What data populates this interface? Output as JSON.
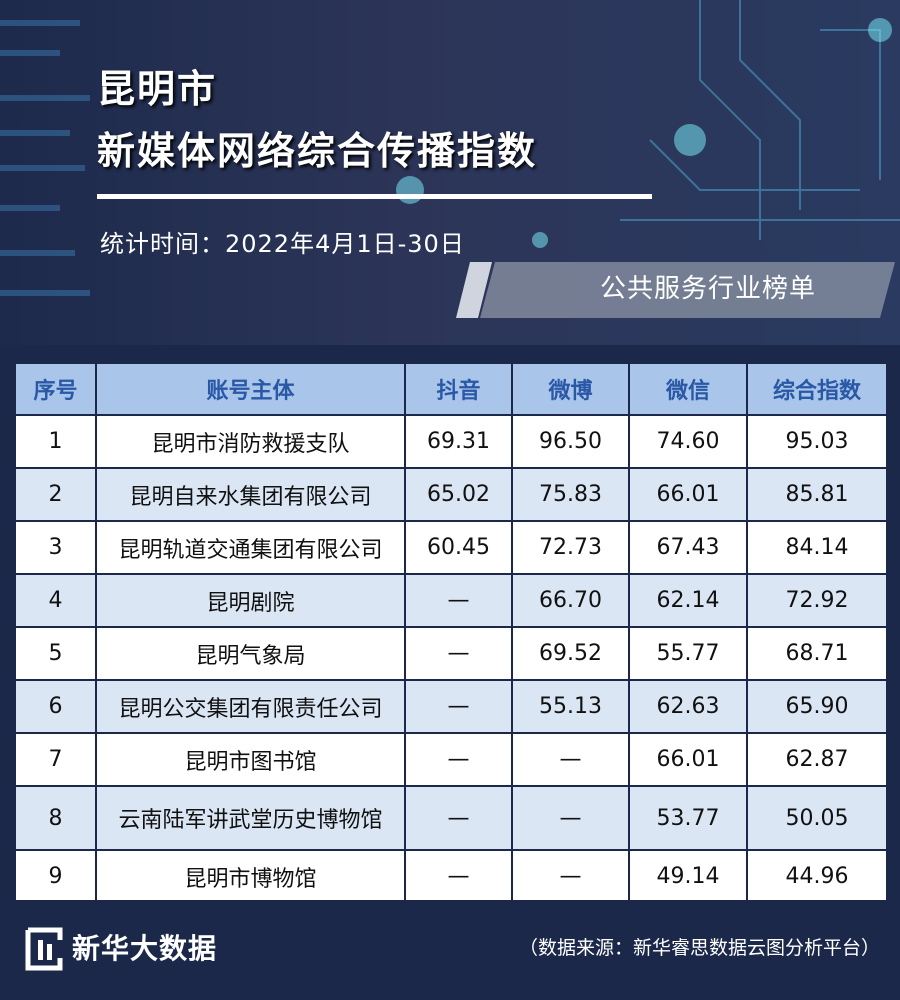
{
  "header": {
    "title_line1": "昆明市",
    "title_line2": "新媒体网络综合传播指数",
    "date": "统计时间：2022年4月1日-30日",
    "category": "公共服务行业榜单"
  },
  "table": {
    "columns": [
      "序号",
      "账号主体",
      "抖音",
      "微博",
      "微信",
      "综合指数"
    ],
    "rows": [
      [
        "1",
        "昆明市消防救援支队",
        "69.31",
        "96.50",
        "74.60",
        "95.03"
      ],
      [
        "2",
        "昆明自来水集团有限公司",
        "65.02",
        "75.83",
        "66.01",
        "85.81"
      ],
      [
        "3",
        "昆明轨道交通集团有限公司",
        "60.45",
        "72.73",
        "67.43",
        "84.14"
      ],
      [
        "4",
        "昆明剧院",
        "—",
        "66.70",
        "62.14",
        "72.92"
      ],
      [
        "5",
        "昆明气象局",
        "—",
        "69.52",
        "55.77",
        "68.71"
      ],
      [
        "6",
        "昆明公交集团有限责任公司",
        "—",
        "55.13",
        "62.63",
        "65.90"
      ],
      [
        "7",
        "昆明市图书馆",
        "—",
        "—",
        "66.01",
        "62.87"
      ],
      [
        "8",
        "云南陆军讲武堂历史博物馆",
        "—",
        "—",
        "53.77",
        "50.05"
      ],
      [
        "9",
        "昆明市博物馆",
        "—",
        "—",
        "49.14",
        "44.96"
      ]
    ]
  },
  "footer": {
    "brand": "新华大数据",
    "source": "（数据来源：新华睿思数据云图分析平台）"
  }
}
